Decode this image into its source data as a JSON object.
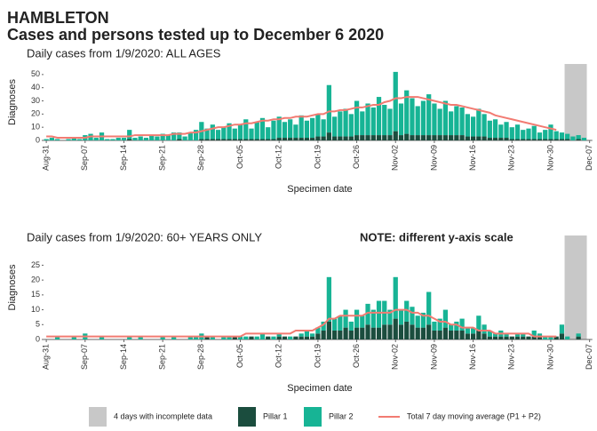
{
  "header": {
    "title": "HAMBLETON",
    "subtitle": "Cases and persons tested up to December  6 2020"
  },
  "legend": {
    "incomplete_label": "4 days with incomplete data",
    "incomplete_color": "#c8c8c8"
  },
  "chart_data": [
    {
      "type": "bar",
      "stacked": true,
      "title": "Daily cases from 1/9/2020: ALL AGES",
      "x_label": "Specimen date",
      "y_label": "Diagnoses",
      "incomplete_days": 4,
      "categories": [
        "Aug-31",
        null,
        null,
        null,
        null,
        null,
        null,
        "Sep-07",
        null,
        null,
        null,
        null,
        null,
        null,
        "Sep-14",
        null,
        null,
        null,
        null,
        null,
        null,
        "Sep-21",
        null,
        null,
        null,
        null,
        null,
        null,
        "Sep-28",
        null,
        null,
        null,
        null,
        null,
        null,
        "Oct-05",
        null,
        null,
        null,
        null,
        null,
        null,
        "Oct-12",
        null,
        null,
        null,
        null,
        null,
        null,
        "Oct-19",
        null,
        null,
        null,
        null,
        null,
        null,
        "Oct-26",
        null,
        null,
        null,
        null,
        null,
        null,
        "Nov-02",
        null,
        null,
        null,
        null,
        null,
        null,
        "Nov-09",
        null,
        null,
        null,
        null,
        null,
        null,
        "Nov-16",
        null,
        null,
        null,
        null,
        null,
        null,
        "Nov-23",
        null,
        null,
        null,
        null,
        null,
        null,
        "Nov-30",
        null,
        null,
        null,
        null,
        null,
        null,
        "Dec-07"
      ],
      "ylim": [
        0,
        58
      ],
      "yticks": [
        0,
        10,
        20,
        30,
        40,
        50
      ],
      "series": [
        {
          "name": "Pillar 1",
          "color": "#1b4d3e",
          "values": [
            0,
            0,
            0,
            0,
            0,
            0,
            0,
            0,
            0,
            0,
            0,
            0,
            0,
            0,
            0,
            1,
            0,
            0,
            0,
            0,
            0,
            0,
            0,
            0,
            1,
            0,
            0,
            0,
            1,
            1,
            1,
            1,
            1,
            1,
            1,
            1,
            1,
            1,
            1,
            1,
            1,
            1,
            2,
            2,
            2,
            2,
            2,
            2,
            2,
            3,
            3,
            6,
            3,
            3,
            3,
            3,
            4,
            4,
            4,
            4,
            4,
            4,
            4,
            7,
            4,
            5,
            4,
            4,
            4,
            4,
            4,
            4,
            4,
            4,
            4,
            4,
            3,
            3,
            3,
            3,
            2,
            2,
            2,
            2,
            1,
            1,
            1,
            1,
            1,
            1,
            1,
            1,
            1,
            1,
            1,
            0,
            1,
            0,
            null
          ]
        },
        {
          "name": "Pillar 2",
          "color": "#17b495",
          "values": [
            1,
            2,
            1,
            0,
            1,
            2,
            1,
            4,
            5,
            2,
            6,
            1,
            1,
            2,
            2,
            7,
            2,
            3,
            2,
            4,
            3,
            5,
            4,
            6,
            5,
            3,
            6,
            8,
            13,
            8,
            11,
            7,
            9,
            12,
            8,
            11,
            15,
            8,
            13,
            16,
            9,
            14,
            16,
            12,
            14,
            10,
            17,
            13,
            15,
            17,
            13,
            36,
            15,
            19,
            21,
            17,
            26,
            18,
            24,
            21,
            29,
            23,
            20,
            45,
            24,
            33,
            28,
            22,
            26,
            31,
            24,
            20,
            26,
            18,
            22,
            21,
            17,
            15,
            21,
            17,
            13,
            14,
            10,
            12,
            9,
            11,
            7,
            8,
            10,
            5,
            7,
            11,
            6,
            5,
            4,
            3,
            3,
            2,
            null
          ]
        },
        {
          "name": "Total 7 day moving average (P1 + P2)",
          "type": "line",
          "color": "#f27b72",
          "values": [
            3,
            3,
            2,
            2,
            2,
            2,
            2,
            2,
            3,
            3,
            3,
            3,
            3,
            3,
            3,
            3,
            4,
            4,
            4,
            4,
            4,
            4,
            4,
            5,
            5,
            5,
            6,
            6,
            7,
            8,
            9,
            10,
            10,
            11,
            12,
            12,
            13,
            13,
            14,
            15,
            15,
            16,
            16,
            17,
            17,
            18,
            18,
            18,
            19,
            20,
            20,
            22,
            22,
            23,
            23,
            24,
            25,
            25,
            26,
            27,
            27,
            29,
            30,
            32,
            32,
            33,
            33,
            33,
            32,
            31,
            30,
            29,
            28,
            27,
            27,
            26,
            25,
            24,
            23,
            22,
            21,
            19,
            18,
            17,
            16,
            15,
            14,
            13,
            12,
            11,
            10,
            9,
            8,
            null,
            null,
            null,
            null,
            null,
            null
          ]
        }
      ]
    },
    {
      "type": "bar",
      "stacked": true,
      "title": "Daily cases from 1/9/2020: 60+ YEARS ONLY",
      "note": "NOTE: different y-axis scale",
      "x_label": "Specimen date",
      "y_label": "Diagnoses",
      "incomplete_days": 4,
      "categories": [
        "Aug-31",
        null,
        null,
        null,
        null,
        null,
        null,
        "Sep-07",
        null,
        null,
        null,
        null,
        null,
        null,
        "Sep-14",
        null,
        null,
        null,
        null,
        null,
        null,
        "Sep-21",
        null,
        null,
        null,
        null,
        null,
        null,
        "Sep-28",
        null,
        null,
        null,
        null,
        null,
        null,
        "Oct-05",
        null,
        null,
        null,
        null,
        null,
        null,
        "Oct-12",
        null,
        null,
        null,
        null,
        null,
        null,
        "Oct-19",
        null,
        null,
        null,
        null,
        null,
        null,
        "Oct-26",
        null,
        null,
        null,
        null,
        null,
        null,
        "Nov-02",
        null,
        null,
        null,
        null,
        null,
        null,
        "Nov-09",
        null,
        null,
        null,
        null,
        null,
        null,
        "Nov-16",
        null,
        null,
        null,
        null,
        null,
        null,
        "Nov-23",
        null,
        null,
        null,
        null,
        null,
        null,
        "Nov-30",
        null,
        null,
        null,
        null,
        null,
        null,
        "Dec-07"
      ],
      "ylim": [
        0,
        35
      ],
      "yticks": [
        0,
        5,
        10,
        15,
        20,
        25
      ],
      "series": [
        {
          "name": "Pillar 1",
          "color": "#1b4d3e",
          "values": [
            0,
            0,
            0,
            0,
            0,
            0,
            0,
            0,
            0,
            0,
            0,
            0,
            0,
            0,
            0,
            0,
            0,
            0,
            0,
            0,
            0,
            0,
            0,
            0,
            0,
            0,
            0,
            0,
            0,
            1,
            0,
            0,
            0,
            0,
            1,
            0,
            0,
            1,
            0,
            0,
            1,
            0,
            1,
            1,
            0,
            1,
            1,
            1,
            1,
            2,
            3,
            6,
            3,
            3,
            4,
            3,
            4,
            4,
            5,
            4,
            4,
            5,
            5,
            7,
            5,
            6,
            5,
            4,
            4,
            5,
            3,
            3,
            4,
            3,
            3,
            3,
            2,
            2,
            3,
            2,
            1,
            1,
            1,
            1,
            1,
            1,
            1,
            1,
            1,
            1,
            0,
            0,
            1,
            2,
            0,
            0,
            1,
            0,
            null
          ]
        },
        {
          "name": "Pillar 2",
          "color": "#17b495",
          "values": [
            0,
            0,
            1,
            0,
            0,
            1,
            0,
            2,
            0,
            0,
            1,
            0,
            0,
            0,
            0,
            1,
            0,
            1,
            0,
            0,
            0,
            1,
            0,
            1,
            0,
            0,
            1,
            1,
            2,
            0,
            1,
            0,
            1,
            1,
            0,
            1,
            1,
            0,
            1,
            2,
            0,
            1,
            1,
            0,
            1,
            0,
            1,
            2,
            1,
            2,
            3,
            15,
            4,
            5,
            6,
            3,
            6,
            4,
            7,
            6,
            9,
            8,
            5,
            14,
            5,
            7,
            6,
            4,
            5,
            11,
            3,
            4,
            6,
            2,
            3,
            4,
            2,
            2,
            5,
            3,
            2,
            1,
            2,
            1,
            0,
            1,
            1,
            0,
            2,
            1,
            1,
            1,
            0,
            3,
            1,
            0,
            1,
            0,
            null
          ]
        },
        {
          "name": "Total 7 day moving average (P1 + P2)",
          "type": "line",
          "color": "#f27b72",
          "values": [
            1,
            1,
            1,
            1,
            1,
            1,
            1,
            1,
            1,
            1,
            1,
            1,
            1,
            1,
            1,
            1,
            1,
            1,
            1,
            1,
            1,
            1,
            1,
            1,
            1,
            1,
            1,
            1,
            1,
            1,
            1,
            1,
            1,
            1,
            1,
            1,
            2,
            2,
            2,
            2,
            2,
            2,
            2,
            2,
            2,
            3,
            3,
            3,
            3,
            4,
            5,
            7,
            7,
            8,
            8,
            8,
            8,
            8,
            9,
            9,
            9,
            9,
            9,
            10,
            10,
            10,
            9,
            9,
            8,
            8,
            7,
            6,
            6,
            5,
            5,
            4,
            4,
            4,
            3,
            3,
            3,
            2,
            2,
            2,
            2,
            2,
            2,
            2,
            1,
            1,
            1,
            1,
            1,
            null,
            null,
            null,
            null,
            null,
            null
          ]
        }
      ]
    }
  ]
}
